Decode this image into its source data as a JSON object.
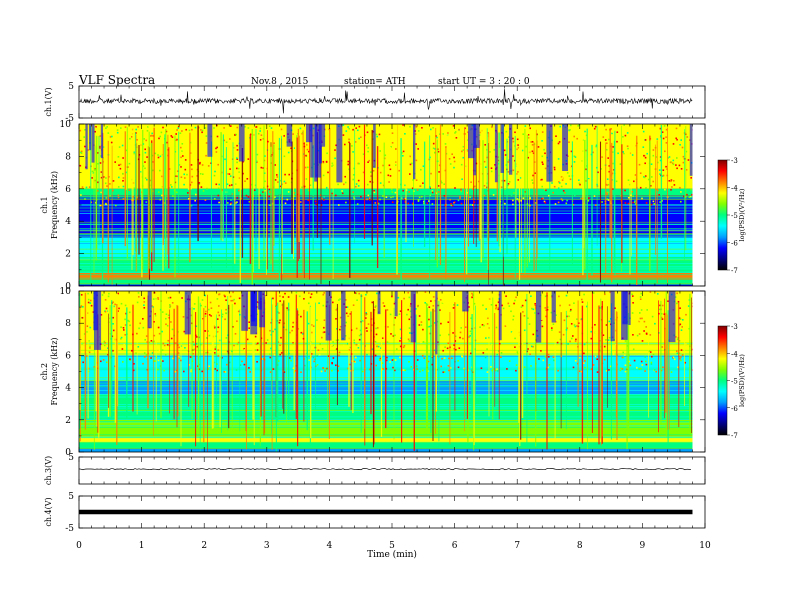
{
  "header": {
    "title": "VLF Spectra",
    "date": "Nov.8 , 2015",
    "station": "station= ATH",
    "start": "start UT = 3 : 20 : 0"
  },
  "colorbar": {
    "label": "log(PSD)(V²/Hz)",
    "ticks": [
      "-3",
      "-4",
      "-5",
      "-6",
      "-7"
    ],
    "colormap": [
      "#000080",
      "#0000ff",
      "#00a0ff",
      "#00ffff",
      "#00ff80",
      "#80ff00",
      "#ffff00",
      "#ff8000",
      "#ff0000",
      "#800000"
    ]
  },
  "chart_data": [
    {
      "type": "line",
      "name": "ch.1 waveform",
      "ylabel": "ch.1(V)",
      "xlim": [
        0,
        10
      ],
      "ylim": [
        -5,
        5
      ],
      "yticks": [
        "5",
        "-5"
      ],
      "series": [
        {
          "approx_baseline_V": 0.3,
          "duration_min": 9.8
        }
      ]
    },
    {
      "type": "heatmap",
      "name": "ch.1 spectrogram",
      "ylabel_top": "ch.1",
      "ylabel": "Frequency (kHz)",
      "xlim": [
        0,
        10
      ],
      "ylim": [
        0,
        10
      ],
      "yticks": [
        "0",
        "2",
        "4",
        "6",
        "8",
        "10"
      ],
      "z_range": [
        -7,
        -3
      ],
      "duration_min": 9.8
    },
    {
      "type": "heatmap",
      "name": "ch.2 spectrogram",
      "ylabel_top": "ch.2",
      "ylabel": "Frequency (kHz)",
      "xlim": [
        0,
        10
      ],
      "ylim": [
        0,
        10
      ],
      "yticks": [
        "0",
        "2",
        "4",
        "6",
        "8",
        "10"
      ],
      "z_range": [
        -7,
        -3
      ],
      "duration_min": 9.8
    },
    {
      "type": "line",
      "name": "ch.3 waveform",
      "ylabel": "ch.3(V)",
      "xlim": [
        0,
        10
      ],
      "ylim": [
        -5,
        5
      ],
      "yticks": [
        "5"
      ],
      "series": [
        {
          "approx_baseline_V": 0.5,
          "duration_min": 9.8
        }
      ]
    },
    {
      "type": "line",
      "name": "ch.4 waveform",
      "ylabel": "ch.4(V)",
      "xlim": [
        0,
        10
      ],
      "ylim": [
        -5,
        5
      ],
      "yticks": [
        "5",
        "-5"
      ],
      "series": [
        {
          "approx_baseline_V": 0.0,
          "duration_min": 9.8
        }
      ]
    }
  ],
  "xaxis": {
    "label": "Time (min)",
    "ticks": [
      "0",
      "1",
      "2",
      "3",
      "4",
      "5",
      "6",
      "7",
      "8",
      "9",
      "10"
    ]
  }
}
